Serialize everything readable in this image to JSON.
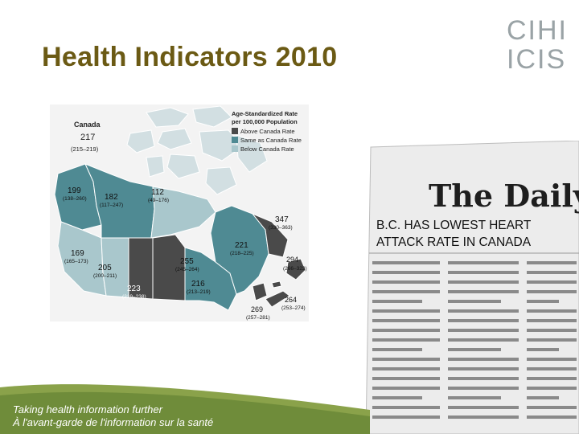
{
  "slide": {
    "title": "Health Indicators 2010",
    "logo_line1": "CIHI",
    "logo_line2": "ICIS",
    "tagline_en": "Taking health information further",
    "tagline_fr": "À l'avant-garde de l'information sur la santé"
  },
  "map": {
    "canada_label": "Canada",
    "canada_value": "217",
    "canada_range": "(215–219)",
    "legend_title_1": "Age-Standardized Rate",
    "legend_title_2": "per 100,000 Population",
    "legend_items": [
      {
        "label": "Above Canada Rate",
        "color": "#4a4a4a"
      },
      {
        "label": "Same as Canada Rate",
        "color": "#4f8a93"
      },
      {
        "label": "Below Canada Rate",
        "color": "#a9c7cc"
      }
    ],
    "regions": [
      {
        "name": "Yukon",
        "value": "199",
        "range": "(138–260)"
      },
      {
        "name": "Northwest Territories",
        "value": "182",
        "range": "(117–247)"
      },
      {
        "name": "Nunavut",
        "value": "112",
        "range": "(49–176)"
      },
      {
        "name": "British Columbia",
        "value": "169",
        "range": "(165–173)"
      },
      {
        "name": "Alberta",
        "value": "205",
        "range": "(200–211)"
      },
      {
        "name": "Saskatchewan",
        "value": "223",
        "range": "(219–238)"
      },
      {
        "name": "Manitoba",
        "value": "255",
        "range": "(245–264)"
      },
      {
        "name": "Ontario",
        "value": "216",
        "range": "(213–219)"
      },
      {
        "name": "Quebec",
        "value": "221",
        "range": "(218–225)"
      },
      {
        "name": "Newfoundland and Labrador",
        "value": "347",
        "range": "(330–363)"
      },
      {
        "name": "Prince Edward Island",
        "value": "294",
        "range": "(266–323)"
      },
      {
        "name": "Nova Scotia",
        "value": "264",
        "range": "(253–274)"
      },
      {
        "name": "New Brunswick",
        "value": "269",
        "range": "(257–281)"
      }
    ]
  },
  "newspaper": {
    "masthead": "The Daily S",
    "headline_line1": "B.C. HAS LOWEST HEART",
    "headline_line2": "ATTACK RATE IN CANADA"
  },
  "colors": {
    "title": "#6b5a14",
    "above": "#4a4a4a",
    "same": "#4f8a93",
    "below": "#a9c7cc",
    "footer_green": "#8aa24a"
  }
}
